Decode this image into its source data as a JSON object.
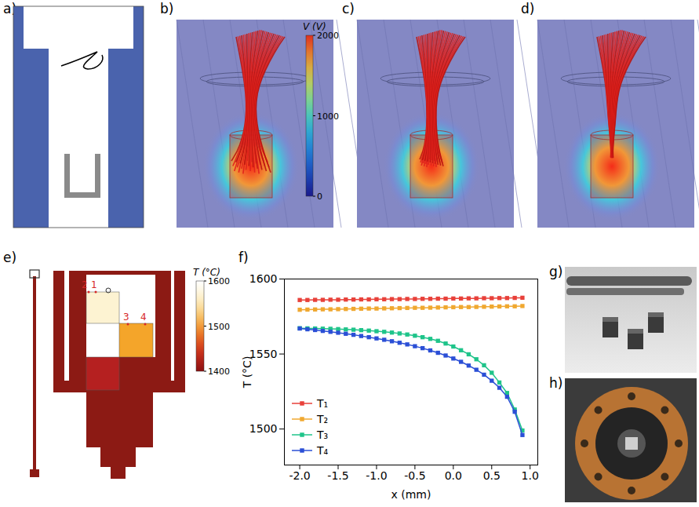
{
  "panels": [
    {
      "letter": "a)"
    },
    {
      "letter": "b)",
      "colorbar": {
        "label": "V (V)",
        "range": [
          0,
          2000
        ],
        "ticks": [
          0,
          1000,
          2000
        ]
      }
    },
    {
      "letter": "c)"
    },
    {
      "letter": "d)"
    },
    {
      "letter": "e)",
      "colorbar": {
        "label": "T (°C)",
        "range": [
          1400,
          1600
        ],
        "ticks": [
          1400,
          1500,
          1600
        ]
      },
      "points": [
        "1",
        "2",
        "3",
        "4"
      ]
    },
    {
      "letter": "f)"
    },
    {
      "letter": "g)"
    },
    {
      "letter": "h)"
    }
  ],
  "chart_data": {
    "type": "line",
    "xlabel": "x (mm)",
    "ylabel": "T (°C)",
    "x": [
      -2.0,
      -1.9,
      -1.8,
      -1.7,
      -1.6,
      -1.5,
      -1.4,
      -1.3,
      -1.2,
      -1.1,
      -1.0,
      -0.9,
      -0.8,
      -0.7,
      -0.6,
      -0.5,
      -0.4,
      -0.3,
      -0.2,
      -0.1,
      0.0,
      0.1,
      0.2,
      0.3,
      0.4,
      0.5,
      0.6,
      0.7,
      0.8,
      0.9
    ],
    "series": [
      {
        "name": "T₁",
        "color": "#e8413a",
        "marker": "square",
        "line_style": "solid",
        "values": [
          1586.0,
          1586.0,
          1586.1,
          1586.1,
          1586.2,
          1586.2,
          1586.3,
          1586.3,
          1586.4,
          1586.4,
          1586.5,
          1586.5,
          1586.6,
          1586.6,
          1586.7,
          1586.7,
          1586.8,
          1586.8,
          1586.9,
          1586.9,
          1587.0,
          1587.0,
          1587.1,
          1587.1,
          1587.2,
          1587.2,
          1587.3,
          1587.3,
          1587.4,
          1587.5
        ]
      },
      {
        "name": "T₂",
        "color": "#f0a830",
        "marker": "square",
        "line_style": "solid",
        "values": [
          1579.5,
          1579.6,
          1579.7,
          1579.8,
          1579.8,
          1579.9,
          1580.0,
          1580.1,
          1580.2,
          1580.3,
          1580.3,
          1580.4,
          1580.5,
          1580.6,
          1580.7,
          1580.8,
          1580.8,
          1580.9,
          1581.0,
          1581.1,
          1581.2,
          1581.3,
          1581.3,
          1581.4,
          1581.5,
          1581.6,
          1581.7,
          1581.8,
          1581.8,
          1582.0
        ]
      },
      {
        "name": "T₃",
        "color": "#1fc48a",
        "marker": "square",
        "line_style": "solid",
        "values": [
          1567.2,
          1567.1,
          1567.0,
          1566.9,
          1566.8,
          1566.6,
          1566.4,
          1566.2,
          1565.9,
          1565.6,
          1565.2,
          1564.8,
          1564.3,
          1563.7,
          1563.0,
          1562.2,
          1561.2,
          1560.1,
          1558.8,
          1557.0,
          1555.0,
          1552.5,
          1549.8,
          1546.5,
          1542.5,
          1537.5,
          1531.0,
          1524.0,
          1513.0,
          1499.0
        ]
      },
      {
        "name": "T₄",
        "color": "#2b4fd6",
        "marker": "square",
        "line_style": "solid",
        "values": [
          1567.0,
          1566.5,
          1566.0,
          1565.4,
          1564.8,
          1564.2,
          1563.5,
          1562.8,
          1562.0,
          1561.2,
          1560.4,
          1559.5,
          1558.5,
          1557.5,
          1556.4,
          1555.2,
          1553.9,
          1552.4,
          1550.8,
          1549.0,
          1547.0,
          1544.8,
          1542.3,
          1539.5,
          1536.2,
          1532.2,
          1527.5,
          1521.5,
          1511.5,
          1496.0
        ]
      }
    ],
    "xlim": [
      -2.2,
      1.1
    ],
    "ylim": [
      1476,
      1600
    ],
    "xticks": [
      {
        "value": -2,
        "label": "-2.0"
      },
      {
        "value": -1.5,
        "label": "-1.5"
      },
      {
        "value": -1,
        "label": "-1.0"
      },
      {
        "value": -0.5,
        "label": "-0.5"
      },
      {
        "value": 0,
        "label": "0.0"
      },
      {
        "value": 0.5,
        "label": "0.5"
      },
      {
        "value": 1,
        "label": "1.0"
      }
    ],
    "yticks": [
      1500,
      1550,
      1600
    ],
    "grid": false,
    "legend": "lower left"
  }
}
